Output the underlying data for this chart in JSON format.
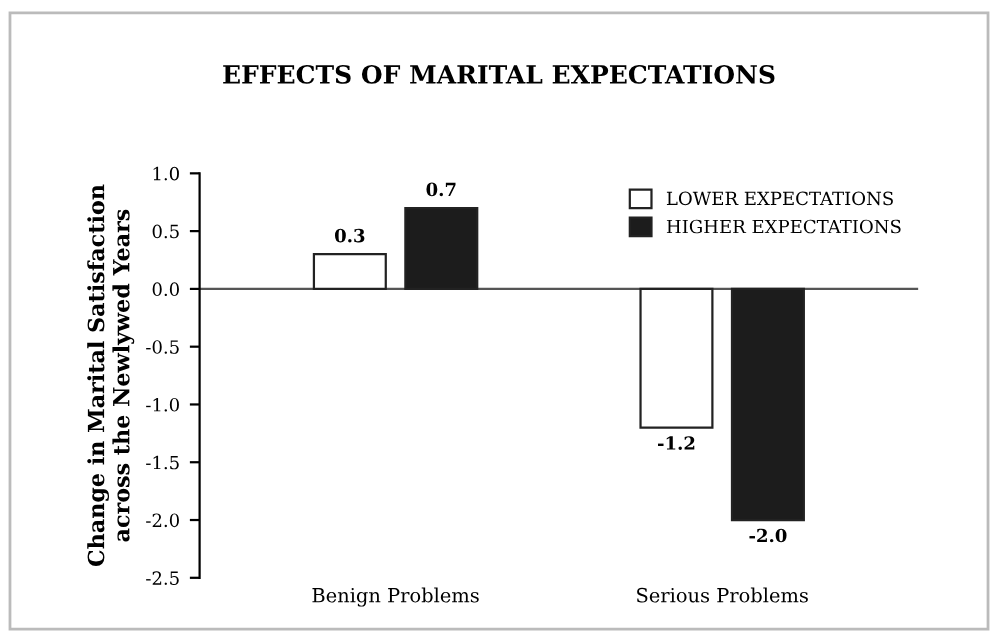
{
  "chart_data": {
    "type": "bar",
    "title": "EFFECTS OF MARITAL EXPECTATIONS",
    "ylabel": "Change in Marital Satisfaction\nacross the Newlywed Years",
    "categories": [
      "Benign Problems",
      "Serious Problems"
    ],
    "series": [
      {
        "name": "LOWER EXPECTATIONS",
        "color": "#ffffff",
        "values": [
          0.3,
          -1.2
        ],
        "value_labels": [
          "0.3",
          "-1.2"
        ]
      },
      {
        "name": "HIGHER EXPECTATIONS",
        "color": "#1c1c1c",
        "values": [
          0.7,
          -2.0
        ],
        "value_labels": [
          "0.7",
          "-2.0"
        ]
      }
    ],
    "ylim": [
      -2.5,
      1.0
    ],
    "yticks": [
      {
        "value": -2.5,
        "label": "-2.5"
      },
      {
        "value": -2.0,
        "label": "-2.0"
      },
      {
        "value": -1.5,
        "label": "-1.5"
      },
      {
        "value": -1.0,
        "label": "-1.0"
      },
      {
        "value": -0.5,
        "label": "-0.5"
      },
      {
        "value": 0.0,
        "label": "0.0"
      },
      {
        "value": 0.5,
        "label": "0.5"
      },
      {
        "value": 1.0,
        "label": "1.0"
      }
    ],
    "ref_lines": [
      {
        "axis": "y",
        "value": 0,
        "color": "#555555"
      }
    ],
    "legend": "top right",
    "grid": false
  }
}
